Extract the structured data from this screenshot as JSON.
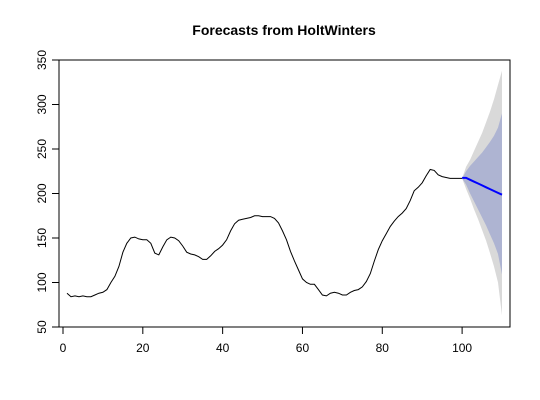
{
  "chart_data": {
    "type": "line",
    "title": "Forecasts from HoltWinters",
    "xlabel": "",
    "ylabel": "",
    "xlim": [
      -1,
      112
    ],
    "ylim": [
      50,
      350
    ],
    "xticks": [
      0,
      20,
      40,
      60,
      80,
      100
    ],
    "yticks": [
      50,
      100,
      150,
      200,
      250,
      300,
      350
    ],
    "grid": false,
    "colors": {
      "observed": "#000000",
      "forecast": "#0000ff",
      "band95": "#d9d9d9",
      "band80": "#aeb4d2"
    },
    "observed": {
      "x": [
        1,
        2,
        3,
        4,
        5,
        6,
        7,
        8,
        9,
        10,
        11,
        12,
        13,
        14,
        15,
        16,
        17,
        18,
        19,
        20,
        21,
        22,
        23,
        24,
        25,
        26,
        27,
        28,
        29,
        30,
        31,
        32,
        33,
        34,
        35,
        36,
        37,
        38,
        39,
        40,
        41,
        42,
        43,
        44,
        45,
        46,
        47,
        48,
        49,
        50,
        51,
        52,
        53,
        54,
        55,
        56,
        57,
        58,
        59,
        60,
        61,
        62,
        63,
        64,
        65,
        66,
        67,
        68,
        69,
        70,
        71,
        72,
        73,
        74,
        75,
        76,
        77,
        78,
        79,
        80,
        81,
        82,
        83,
        84,
        85,
        86,
        87,
        88,
        89,
        90,
        91,
        92,
        93,
        94,
        95,
        96,
        97,
        98,
        99,
        100
      ],
      "y": [
        88,
        84,
        85,
        84,
        85,
        84,
        84,
        86,
        88,
        89,
        92,
        100,
        107,
        118,
        134,
        144,
        150,
        151,
        149,
        148,
        148,
        144,
        133,
        131,
        140,
        148,
        151,
        150,
        147,
        141,
        134,
        132,
        131,
        129,
        126,
        126,
        130,
        135,
        138,
        142,
        148,
        158,
        166,
        170,
        171,
        172,
        173,
        175,
        175,
        174,
        174,
        174,
        172,
        167,
        158,
        148,
        135,
        124,
        114,
        104,
        100,
        98,
        98,
        92,
        86,
        85,
        88,
        89,
        88,
        86,
        86,
        89,
        91,
        92,
        95,
        101,
        110,
        124,
        137,
        147,
        155,
        163,
        169,
        174,
        178,
        183,
        192,
        203,
        207,
        212,
        220,
        227,
        226,
        221,
        219,
        218,
        217,
        217,
        217,
        217
      ]
    },
    "forecast": {
      "x": [
        101,
        102,
        103,
        104,
        105,
        106,
        107,
        108,
        109,
        110
      ],
      "y": [
        217.5,
        215.4,
        213.3,
        211.2,
        209.1,
        207.0,
        204.9,
        202.8,
        200.7,
        198.6
      ],
      "lo80": [
        210,
        200,
        191,
        182,
        173,
        164,
        154,
        144,
        132,
        109
      ],
      "hi80": [
        225,
        231,
        236,
        241,
        246,
        252,
        258,
        265,
        274,
        290
      ],
      "lo95": [
        205,
        194,
        182,
        171,
        159,
        147,
        133,
        118,
        100,
        63
      ],
      "hi95": [
        230,
        238,
        248,
        258,
        268,
        280,
        292,
        306,
        322,
        338
      ]
    }
  }
}
